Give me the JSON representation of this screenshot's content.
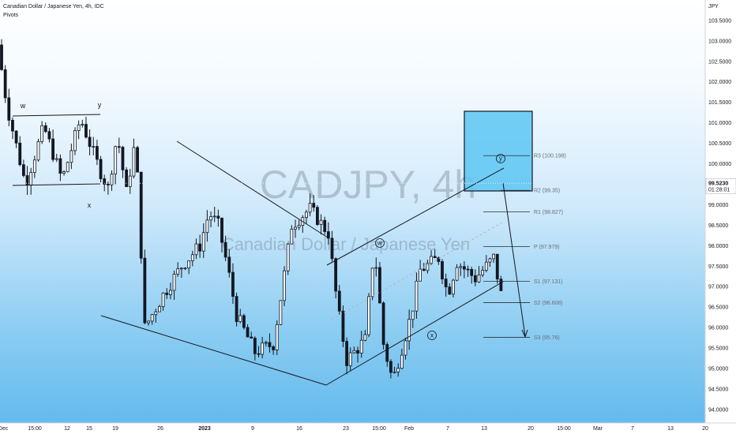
{
  "header": {
    "symbol_line": "Canadian Dollar / Japanese Yen, 4h, IDC",
    "indicator": "Pivots",
    "currency": "JPY"
  },
  "watermark": {
    "ticker": "CADJPY, 4h",
    "name": "Canadian Dollar / Japanese Yen"
  },
  "price_tag": {
    "price": "99.5230",
    "countdown": "01:28:01"
  },
  "pivots": {
    "R3": "R3 (100.198)",
    "R2": "R2 (99.35)",
    "R1": "R1 (98.827)",
    "P": "P (97.979)",
    "S1": "S1 (97.131)",
    "S2": "S2 (96.608)",
    "S3": "S3 (95.76)"
  },
  "wave_labels": {
    "w1": "w",
    "y1": "y",
    "x1": "x",
    "w2": "w",
    "x2": "x",
    "y2": "y"
  },
  "colors": {
    "candle": "#131722",
    "box_fill": "#5cc6f2",
    "box_border": "#131722",
    "pivot_line": "#2a2e39",
    "dashed_trend": "#b2b5be"
  },
  "chart_data": {
    "type": "candlestick",
    "y_axis": {
      "min": 93.8,
      "max": 103.6,
      "ticks": [
        "103.5000",
        "103.0000",
        "102.5000",
        "102.0000",
        "101.5000",
        "101.0000",
        "100.5000",
        "100.0000",
        "99.0000",
        "98.5000",
        "98.0000",
        "97.5000",
        "97.0000",
        "96.5000",
        "96.0000",
        "95.5000",
        "95.0000",
        "94.5000",
        "94.0000"
      ]
    },
    "x_axis": {
      "ticks": [
        "Dec",
        "15:00",
        "12",
        "15",
        "19",
        "26",
        "2023",
        "9",
        "16",
        "23",
        "15:00",
        "Feb",
        "7",
        "13",
        "20",
        "15:00",
        "Mar",
        "7",
        "13",
        "20"
      ]
    },
    "price_path": [
      [
        0,
        102.9
      ],
      [
        1,
        101.4
      ],
      [
        3,
        99.5
      ],
      [
        5,
        100.9
      ],
      [
        7,
        99.6
      ],
      [
        9,
        101.1
      ],
      [
        11,
        99.9
      ],
      [
        12,
        99.4
      ],
      [
        13,
        100.7
      ],
      [
        14,
        99.3
      ],
      [
        15,
        100.6
      ],
      [
        16,
        96.0
      ],
      [
        18,
        96.8
      ],
      [
        20,
        97.5
      ],
      [
        22,
        98.0
      ],
      [
        23,
        98.8
      ],
      [
        24,
        98.5
      ],
      [
        25,
        97.5
      ],
      [
        26,
        96.3
      ],
      [
        28,
        95.4
      ],
      [
        30,
        95.6
      ],
      [
        31,
        97.0
      ],
      [
        32,
        98.5
      ],
      [
        34,
        98.9
      ],
      [
        36,
        98.3
      ],
      [
        37,
        96.5
      ],
      [
        38,
        95.2
      ],
      [
        40,
        95.7
      ],
      [
        41,
        98.0
      ],
      [
        42,
        95.6
      ],
      [
        43,
        94.7
      ],
      [
        45,
        96.3
      ],
      [
        46,
        97.4
      ],
      [
        48,
        97.7
      ],
      [
        49,
        96.8
      ],
      [
        50,
        97.6
      ],
      [
        52,
        97.2
      ],
      [
        54,
        97.7
      ],
      [
        55,
        96.6
      ],
      [
        56,
        96.3
      ],
      [
        57,
        98.5
      ],
      [
        58,
        98.7
      ],
      [
        59,
        98.2
      ],
      [
        60,
        97.4
      ],
      [
        61,
        97.6
      ],
      [
        62,
        97.2
      ],
      [
        63,
        98.1
      ],
      [
        64,
        99.2
      ],
      [
        65,
        99.6
      ],
      [
        66,
        99.0
      ],
      [
        67,
        99.5
      ]
    ],
    "pivot_levels": [
      {
        "name": "R3",
        "value": 100.198
      },
      {
        "name": "R2",
        "value": 99.35
      },
      {
        "name": "R1",
        "value": 98.827
      },
      {
        "name": "P",
        "value": 97.979
      },
      {
        "name": "S1",
        "value": 97.131
      },
      {
        "name": "S2",
        "value": 96.608
      },
      {
        "name": "S3",
        "value": 95.76
      }
    ],
    "last_price": 99.523
  }
}
